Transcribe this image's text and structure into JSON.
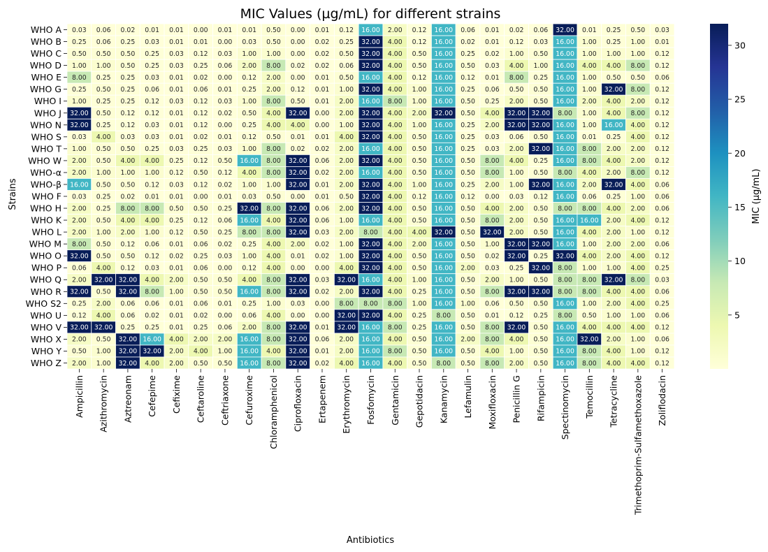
{
  "chart_data": {
    "type": "heatmap",
    "title": "MIC Values (µg/mL) for different strains",
    "xlabel": "Antibiotics",
    "ylabel": "Strains",
    "colorbar_label": "MIC (µg/mL)",
    "colormap": "YlGnBu",
    "vmin": 0,
    "vmax": 32,
    "colorbar_ticks": [
      5,
      10,
      15,
      20,
      25,
      30
    ],
    "colors": [
      "#ffffd9",
      "#edf8b1",
      "#c7e9b4",
      "#7fcdbb",
      "#41b6c4",
      "#1d91c0",
      "#225ea8",
      "#253494",
      "#081d58"
    ],
    "columns": [
      "Ampicillin",
      "Azithromycin",
      "Aztreonam",
      "Cefepime",
      "Cefixime",
      "Ceftaroline",
      "Ceftriaxone",
      "Cefuroxime",
      "Chloramphenicol",
      "Ciprofloxacin",
      "Ertapenem",
      "Erythromycin",
      "Fosfomycin",
      "Gentamicin",
      "Gepotidacin",
      "Kanamycin",
      "Lefamulin",
      "Moxifloxacin",
      "Penicillin G",
      "Rifampicin",
      "Spectinomycin",
      "Temocillin",
      "Tetracycline",
      "Trimethoprim-Sulfamethoxazole",
      "Zoliflodacin"
    ],
    "rows": [
      "WHO A",
      "WHO B",
      "WHO C",
      "WHO D",
      "WHO E",
      "WHO G",
      "WHO I",
      "WHO J",
      "WHO N",
      "WHO S",
      "WHO T",
      "WHO W",
      "WHO-α",
      "WHO-β",
      "WHO F",
      "WHO H",
      "WHO K",
      "WHO L",
      "WHO M",
      "WHO O",
      "WHO P",
      "WHO Q",
      "WHO R",
      "WHO S2",
      "WHO U",
      "WHO V",
      "WHO X",
      "WHO Y",
      "WHO Z"
    ],
    "values": [
      [
        0.03,
        0.06,
        0.02,
        0.01,
        0.01,
        0.0,
        0.01,
        0.01,
        0.5,
        0.0,
        0.01,
        0.12,
        16.0,
        2.0,
        0.12,
        16.0,
        0.06,
        0.01,
        0.02,
        0.06,
        32.0,
        0.01,
        0.25,
        0.5,
        0.03
      ],
      [
        0.25,
        0.06,
        0.25,
        0.03,
        0.01,
        0.01,
        0.0,
        0.03,
        0.5,
        0.0,
        0.02,
        0.25,
        32.0,
        4.0,
        0.12,
        16.0,
        0.02,
        0.01,
        0.12,
        0.03,
        16.0,
        1.0,
        0.25,
        1.0,
        0.01
      ],
      [
        0.5,
        0.5,
        0.5,
        0.25,
        0.03,
        0.12,
        0.03,
        1.0,
        1.0,
        0.0,
        0.02,
        0.5,
        32.0,
        4.0,
        0.5,
        16.0,
        0.25,
        0.02,
        1.0,
        0.5,
        16.0,
        1.0,
        1.0,
        1.0,
        0.12
      ],
      [
        1.0,
        1.0,
        0.5,
        0.25,
        0.03,
        0.25,
        0.06,
        2.0,
        8.0,
        0.02,
        0.02,
        0.06,
        32.0,
        4.0,
        0.5,
        16.0,
        0.5,
        0.03,
        4.0,
        1.0,
        16.0,
        4.0,
        4.0,
        8.0,
        0.12
      ],
      [
        8.0,
        0.25,
        0.25,
        0.03,
        0.01,
        0.02,
        0.0,
        0.12,
        2.0,
        0.0,
        0.01,
        0.5,
        16.0,
        4.0,
        0.12,
        16.0,
        0.12,
        0.01,
        8.0,
        0.25,
        16.0,
        1.0,
        0.5,
        0.5,
        0.06
      ],
      [
        0.25,
        0.5,
        0.25,
        0.06,
        0.01,
        0.06,
        0.01,
        0.25,
        2.0,
        0.12,
        0.01,
        1.0,
        32.0,
        4.0,
        1.0,
        16.0,
        0.25,
        0.06,
        0.5,
        0.5,
        16.0,
        1.0,
        32.0,
        8.0,
        0.12
      ],
      [
        1.0,
        0.25,
        0.25,
        0.12,
        0.03,
        0.12,
        0.03,
        1.0,
        8.0,
        0.5,
        0.01,
        2.0,
        16.0,
        8.0,
        1.0,
        16.0,
        0.5,
        0.25,
        2.0,
        0.5,
        16.0,
        2.0,
        4.0,
        2.0,
        0.12
      ],
      [
        32.0,
        0.5,
        0.12,
        0.12,
        0.01,
        0.12,
        0.02,
        0.5,
        4.0,
        32.0,
        0.0,
        2.0,
        32.0,
        4.0,
        2.0,
        32.0,
        0.5,
        4.0,
        32.0,
        32.0,
        8.0,
        1.0,
        4.0,
        8.0,
        0.12
      ],
      [
        32.0,
        0.25,
        0.12,
        0.03,
        0.01,
        0.12,
        0.0,
        0.25,
        4.0,
        4.0,
        0.0,
        1.0,
        32.0,
        4.0,
        1.0,
        16.0,
        0.25,
        2.0,
        32.0,
        32.0,
        16.0,
        1.0,
        16.0,
        4.0,
        0.12
      ],
      [
        0.03,
        4.0,
        0.03,
        0.03,
        0.01,
        0.02,
        0.01,
        0.12,
        0.5,
        0.01,
        0.01,
        4.0,
        32.0,
        4.0,
        0.5,
        16.0,
        0.25,
        0.03,
        0.06,
        0.5,
        16.0,
        0.01,
        0.25,
        4.0,
        0.12
      ],
      [
        1.0,
        0.5,
        0.5,
        0.25,
        0.03,
        0.25,
        0.03,
        1.0,
        8.0,
        0.02,
        0.02,
        2.0,
        16.0,
        4.0,
        0.5,
        16.0,
        0.25,
        0.03,
        2.0,
        32.0,
        16.0,
        8.0,
        2.0,
        2.0,
        0.12
      ],
      [
        2.0,
        0.5,
        4.0,
        4.0,
        0.25,
        0.12,
        0.5,
        16.0,
        8.0,
        32.0,
        0.06,
        2.0,
        32.0,
        4.0,
        0.5,
        16.0,
        0.5,
        8.0,
        4.0,
        0.25,
        16.0,
        8.0,
        4.0,
        2.0,
        0.12
      ],
      [
        2.0,
        1.0,
        1.0,
        1.0,
        0.12,
        0.5,
        0.12,
        4.0,
        8.0,
        32.0,
        0.02,
        2.0,
        16.0,
        4.0,
        0.5,
        16.0,
        0.5,
        8.0,
        1.0,
        0.5,
        8.0,
        4.0,
        2.0,
        8.0,
        0.12
      ],
      [
        16.0,
        0.5,
        0.5,
        0.12,
        0.03,
        0.12,
        0.02,
        1.0,
        1.0,
        32.0,
        0.01,
        2.0,
        32.0,
        4.0,
        1.0,
        16.0,
        0.25,
        2.0,
        1.0,
        32.0,
        16.0,
        2.0,
        32.0,
        4.0,
        0.06
      ],
      [
        0.03,
        0.25,
        0.02,
        0.01,
        0.01,
        0.0,
        0.01,
        0.03,
        0.5,
        0.0,
        0.01,
        0.5,
        32.0,
        4.0,
        0.12,
        16.0,
        0.12,
        0.0,
        0.03,
        0.12,
        16.0,
        0.06,
        0.25,
        1.0,
        0.06
      ],
      [
        2.0,
        0.25,
        8.0,
        8.0,
        0.5,
        0.5,
        0.25,
        32.0,
        8.0,
        32.0,
        0.06,
        2.0,
        32.0,
        4.0,
        0.5,
        16.0,
        0.5,
        4.0,
        2.0,
        0.5,
        8.0,
        8.0,
        4.0,
        2.0,
        0.06
      ],
      [
        2.0,
        0.5,
        4.0,
        4.0,
        0.25,
        0.12,
        0.06,
        16.0,
        4.0,
        32.0,
        0.06,
        1.0,
        16.0,
        4.0,
        0.5,
        16.0,
        0.5,
        8.0,
        2.0,
        0.5,
        16.0,
        16.0,
        2.0,
        4.0,
        0.12
      ],
      [
        2.0,
        1.0,
        2.0,
        1.0,
        0.12,
        0.5,
        0.25,
        8.0,
        8.0,
        32.0,
        0.03,
        2.0,
        8.0,
        4.0,
        4.0,
        32.0,
        0.5,
        32.0,
        2.0,
        0.5,
        16.0,
        4.0,
        2.0,
        1.0,
        0.12
      ],
      [
        8.0,
        0.5,
        0.12,
        0.06,
        0.01,
        0.06,
        0.02,
        0.25,
        4.0,
        2.0,
        0.02,
        1.0,
        32.0,
        4.0,
        2.0,
        16.0,
        0.5,
        1.0,
        32.0,
        32.0,
        16.0,
        1.0,
        2.0,
        2.0,
        0.06
      ],
      [
        32.0,
        0.5,
        0.5,
        0.12,
        0.02,
        0.25,
        0.03,
        1.0,
        4.0,
        0.01,
        0.02,
        1.0,
        32.0,
        4.0,
        0.5,
        16.0,
        0.5,
        0.02,
        32.0,
        0.25,
        32.0,
        4.0,
        2.0,
        4.0,
        0.12
      ],
      [
        0.06,
        4.0,
        0.12,
        0.03,
        0.01,
        0.06,
        0.0,
        0.12,
        4.0,
        0.0,
        0.0,
        4.0,
        32.0,
        4.0,
        0.5,
        16.0,
        2.0,
        0.03,
        0.25,
        32.0,
        8.0,
        1.0,
        1.0,
        4.0,
        0.25
      ],
      [
        2.0,
        32.0,
        32.0,
        4.0,
        2.0,
        0.5,
        0.5,
        4.0,
        8.0,
        32.0,
        0.03,
        32.0,
        16.0,
        4.0,
        1.0,
        16.0,
        0.5,
        2.0,
        1.0,
        0.5,
        8.0,
        8.0,
        32.0,
        8.0,
        0.03
      ],
      [
        32.0,
        0.5,
        32.0,
        8.0,
        1.0,
        0.5,
        0.5,
        16.0,
        8.0,
        32.0,
        0.02,
        2.0,
        32.0,
        4.0,
        0.25,
        16.0,
        0.5,
        8.0,
        32.0,
        32.0,
        8.0,
        8.0,
        4.0,
        4.0,
        0.06
      ],
      [
        0.25,
        2.0,
        0.06,
        0.06,
        0.01,
        0.06,
        0.01,
        0.25,
        1.0,
        0.03,
        0.0,
        8.0,
        8.0,
        8.0,
        1.0,
        16.0,
        1.0,
        0.06,
        0.5,
        0.5,
        16.0,
        1.0,
        2.0,
        4.0,
        0.25
      ],
      [
        0.12,
        4.0,
        0.06,
        0.02,
        0.01,
        0.02,
        0.0,
        0.06,
        4.0,
        0.0,
        0.0,
        32.0,
        32.0,
        4.0,
        0.25,
        8.0,
        0.5,
        0.01,
        0.12,
        0.25,
        8.0,
        0.5,
        1.0,
        1.0,
        0.06
      ],
      [
        32.0,
        32.0,
        0.25,
        0.25,
        0.01,
        0.25,
        0.06,
        2.0,
        8.0,
        32.0,
        0.01,
        32.0,
        16.0,
        8.0,
        0.25,
        16.0,
        0.5,
        8.0,
        32.0,
        0.5,
        16.0,
        4.0,
        4.0,
        4.0,
        0.12
      ],
      [
        2.0,
        0.5,
        32.0,
        16.0,
        4.0,
        2.0,
        2.0,
        16.0,
        8.0,
        32.0,
        0.06,
        2.0,
        16.0,
        4.0,
        0.5,
        16.0,
        2.0,
        8.0,
        4.0,
        0.5,
        16.0,
        32.0,
        2.0,
        1.0,
        0.06
      ],
      [
        0.5,
        1.0,
        32.0,
        32.0,
        2.0,
        4.0,
        1.0,
        16.0,
        4.0,
        32.0,
        0.01,
        2.0,
        16.0,
        8.0,
        0.5,
        16.0,
        0.5,
        4.0,
        1.0,
        0.5,
        16.0,
        8.0,
        4.0,
        1.0,
        0.12
      ],
      [
        2.0,
        1.0,
        32.0,
        4.0,
        2.0,
        0.5,
        0.5,
        16.0,
        8.0,
        32.0,
        0.02,
        4.0,
        16.0,
        4.0,
        0.5,
        8.0,
        0.5,
        8.0,
        2.0,
        0.5,
        16.0,
        8.0,
        4.0,
        4.0,
        0.12
      ]
    ]
  }
}
